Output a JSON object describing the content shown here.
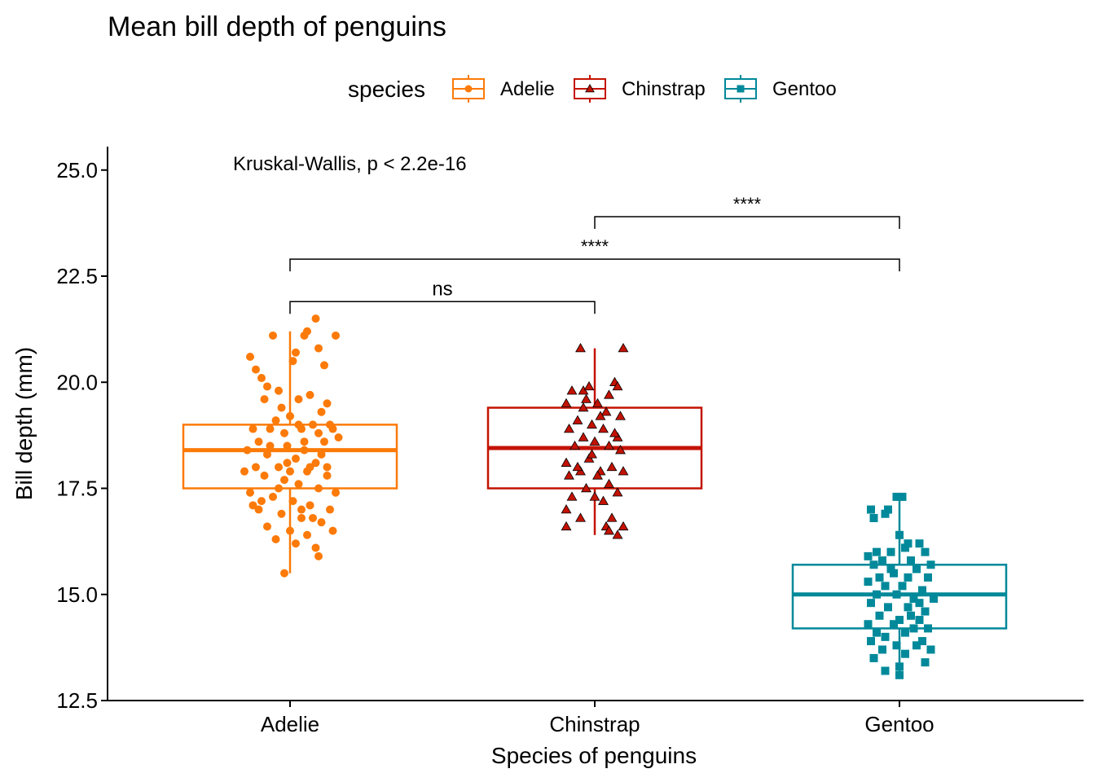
{
  "chart_data": {
    "type": "box",
    "title": "Mean bill depth of penguins",
    "xlabel": "Species of penguins",
    "ylabel": "Bill depth (mm)",
    "ylim": [
      12.5,
      25.5
    ],
    "yticks": [
      "12.5",
      "15.0",
      "17.5",
      "20.0",
      "22.5",
      "25.0"
    ],
    "ytick_values": [
      12.5,
      15.0,
      17.5,
      20.0,
      22.5,
      25.0
    ],
    "categories": [
      "Adelie",
      "Chinstrap",
      "Gentoo"
    ],
    "legend": {
      "title": "species",
      "position": "top",
      "items": [
        {
          "label": "Adelie",
          "color": "#FC7A08",
          "shape": "circle"
        },
        {
          "label": "Chinstrap",
          "color": "#C31200",
          "shape": "triangle"
        },
        {
          "label": "Gentoo",
          "color": "#00899A",
          "shape": "square"
        }
      ]
    },
    "annotation": "Kruskal-Wallis, p < 2.2e-16",
    "series": [
      {
        "name": "Adelie",
        "color": "#FC7A08",
        "shape": "circle",
        "box": {
          "min": 15.5,
          "q1": 17.5,
          "median": 18.4,
          "q3": 19.0,
          "max": 21.2
        },
        "points": [
          [
            -0.28,
            20.6
          ],
          [
            -0.24,
            20.3
          ],
          [
            -0.2,
            20.1
          ],
          [
            -0.16,
            19.9
          ],
          [
            -0.08,
            19.8
          ],
          [
            0.06,
            19.6
          ],
          [
            0.14,
            19.7
          ],
          [
            0.26,
            19.5
          ],
          [
            0.22,
            19.3
          ],
          [
            -0.12,
            21.1
          ],
          [
            0.04,
            20.7
          ],
          [
            0.1,
            21.1
          ],
          [
            0.12,
            21.2
          ],
          [
            0.18,
            21.5
          ],
          [
            0.32,
            21.1
          ],
          [
            0.2,
            20.8
          ],
          [
            0.02,
            20.5
          ],
          [
            0.24,
            20.4
          ],
          [
            -0.18,
            19.6
          ],
          [
            -0.06,
            19.4
          ],
          [
            0.0,
            19.2
          ],
          [
            -0.1,
            19.1
          ],
          [
            0.16,
            19.0
          ],
          [
            0.28,
            19.0
          ],
          [
            -0.26,
            18.9
          ],
          [
            -0.14,
            18.9
          ],
          [
            -0.04,
            18.8
          ],
          [
            0.08,
            18.9
          ],
          [
            0.2,
            18.8
          ],
          [
            0.3,
            18.9
          ],
          [
            -0.22,
            18.6
          ],
          [
            -0.02,
            18.5
          ],
          [
            0.1,
            18.6
          ],
          [
            0.24,
            18.6
          ],
          [
            -0.3,
            18.4
          ],
          [
            -0.16,
            18.3
          ],
          [
            0.04,
            18.2
          ],
          [
            0.18,
            18.1
          ],
          [
            -0.24,
            18.0
          ],
          [
            -0.08,
            18.0
          ],
          [
            0.0,
            17.9
          ],
          [
            0.12,
            17.9
          ],
          [
            0.26,
            18.0
          ],
          [
            -0.18,
            17.8
          ],
          [
            -0.04,
            17.7
          ],
          [
            0.06,
            17.6
          ],
          [
            0.2,
            17.5
          ],
          [
            0.32,
            17.4
          ],
          [
            -0.28,
            17.4
          ],
          [
            -0.12,
            17.3
          ],
          [
            0.02,
            17.2
          ],
          [
            0.14,
            17.1
          ],
          [
            0.28,
            17.0
          ],
          [
            -0.22,
            17.0
          ],
          [
            -0.06,
            16.9
          ],
          [
            0.08,
            16.8
          ],
          [
            0.22,
            16.7
          ],
          [
            -0.16,
            16.6
          ],
          [
            0.0,
            16.5
          ],
          [
            0.12,
            16.4
          ],
          [
            0.3,
            16.5
          ],
          [
            -0.1,
            16.3
          ],
          [
            0.04,
            16.2
          ],
          [
            0.18,
            16.1
          ],
          [
            0.2,
            15.9
          ],
          [
            -0.04,
            15.5
          ],
          [
            0.08,
            17.0
          ],
          [
            -0.2,
            17.2
          ],
          [
            0.16,
            16.8
          ],
          [
            -0.26,
            17.1
          ],
          [
            0.1,
            18.4
          ],
          [
            -0.14,
            18.5
          ],
          [
            0.22,
            18.3
          ],
          [
            -0.02,
            18.1
          ],
          [
            0.26,
            17.8
          ],
          [
            -0.32,
            17.9
          ],
          [
            0.34,
            18.7
          ],
          [
            -0.08,
            17.5
          ],
          [
            0.06,
            19.0
          ],
          [
            0.14,
            18.0
          ]
        ]
      },
      {
        "name": "Chinstrap",
        "color": "#C31200",
        "shape": "triangle",
        "box": {
          "min": 16.4,
          "q1": 17.5,
          "median": 18.45,
          "q3": 19.4,
          "max": 20.8
        },
        "points": [
          [
            -0.1,
            20.8
          ],
          [
            0.2,
            20.8
          ],
          [
            0.14,
            20.0
          ],
          [
            0.16,
            19.9
          ],
          [
            -0.08,
            19.8
          ],
          [
            -0.04,
            19.9
          ],
          [
            0.1,
            19.7
          ],
          [
            -0.16,
            19.8
          ],
          [
            -0.06,
            19.6
          ],
          [
            0.02,
            19.5
          ],
          [
            -0.2,
            19.5
          ],
          [
            0.08,
            19.3
          ],
          [
            0.18,
            19.2
          ],
          [
            -0.12,
            19.1
          ],
          [
            -0.02,
            19.0
          ],
          [
            0.06,
            18.9
          ],
          [
            -0.18,
            18.9
          ],
          [
            0.16,
            18.7
          ],
          [
            -0.08,
            18.7
          ],
          [
            0.0,
            18.6
          ],
          [
            -0.14,
            18.5
          ],
          [
            0.1,
            18.5
          ],
          [
            0.18,
            18.4
          ],
          [
            -0.04,
            18.2
          ],
          [
            -0.2,
            18.1
          ],
          [
            0.12,
            18.0
          ],
          [
            0.04,
            17.9
          ],
          [
            -0.1,
            17.9
          ],
          [
            0.2,
            17.9
          ],
          [
            -0.18,
            17.8
          ],
          [
            0.02,
            17.8
          ],
          [
            0.1,
            17.6
          ],
          [
            -0.06,
            17.5
          ],
          [
            0.16,
            17.4
          ],
          [
            -0.16,
            17.3
          ],
          [
            0.0,
            17.3
          ],
          [
            0.06,
            17.2
          ],
          [
            -0.2,
            17.0
          ],
          [
            -0.1,
            16.8
          ],
          [
            0.12,
            16.8
          ],
          [
            0.2,
            16.6
          ],
          [
            0.08,
            16.6
          ],
          [
            -0.2,
            16.6
          ],
          [
            0.1,
            16.5
          ],
          [
            0.16,
            16.4
          ],
          [
            -0.08,
            19.4
          ],
          [
            0.04,
            19.2
          ],
          [
            -0.02,
            18.3
          ],
          [
            0.14,
            18.8
          ],
          [
            -0.12,
            18.0
          ]
        ]
      },
      {
        "name": "Gentoo",
        "color": "#00899A",
        "shape": "square",
        "box": {
          "min": 13.1,
          "q1": 14.2,
          "median": 15.0,
          "q3": 15.7,
          "max": 17.3
        },
        "points": [
          [
            -0.02,
            17.3
          ],
          [
            0.02,
            17.3
          ],
          [
            -0.08,
            17.0
          ],
          [
            -0.2,
            17.0
          ],
          [
            -0.18,
            16.8
          ],
          [
            -0.1,
            16.9
          ],
          [
            0.0,
            16.4
          ],
          [
            0.06,
            16.2
          ],
          [
            0.14,
            16.2
          ],
          [
            -0.16,
            16.0
          ],
          [
            -0.06,
            16.0
          ],
          [
            0.04,
            16.1
          ],
          [
            0.18,
            16.0
          ],
          [
            -0.22,
            15.9
          ],
          [
            -0.12,
            15.8
          ],
          [
            0.08,
            15.8
          ],
          [
            0.22,
            15.7
          ],
          [
            -0.18,
            15.7
          ],
          [
            0.12,
            15.6
          ],
          [
            -0.04,
            15.5
          ],
          [
            0.2,
            15.4
          ],
          [
            -0.22,
            15.3
          ],
          [
            -0.1,
            15.2
          ],
          [
            0.02,
            15.2
          ],
          [
            0.16,
            15.1
          ],
          [
            -0.16,
            15.0
          ],
          [
            -0.02,
            15.0
          ],
          [
            0.1,
            14.9
          ],
          [
            0.24,
            14.9
          ],
          [
            -0.2,
            14.8
          ],
          [
            -0.08,
            14.7
          ],
          [
            0.06,
            14.7
          ],
          [
            0.18,
            14.6
          ],
          [
            -0.14,
            14.5
          ],
          [
            0.0,
            14.4
          ],
          [
            0.14,
            14.4
          ],
          [
            -0.22,
            14.3
          ],
          [
            -0.04,
            14.3
          ],
          [
            0.1,
            14.2
          ],
          [
            0.2,
            14.2
          ],
          [
            -0.16,
            14.1
          ],
          [
            0.04,
            14.1
          ],
          [
            -0.1,
            14.0
          ],
          [
            0.16,
            13.9
          ],
          [
            -0.2,
            13.9
          ],
          [
            -0.02,
            13.8
          ],
          [
            0.12,
            13.8
          ],
          [
            0.22,
            13.7
          ],
          [
            -0.12,
            13.7
          ],
          [
            0.04,
            13.6
          ],
          [
            -0.18,
            13.5
          ],
          [
            0.18,
            13.4
          ],
          [
            0.0,
            13.3
          ],
          [
            -0.1,
            13.2
          ],
          [
            0.0,
            13.1
          ],
          [
            0.06,
            15.4
          ],
          [
            -0.06,
            15.6
          ],
          [
            0.14,
            14.8
          ],
          [
            -0.14,
            15.4
          ],
          [
            0.08,
            14.5
          ]
        ]
      }
    ],
    "comparisons": [
      {
        "group1": "Adelie",
        "group2": "Chinstrap",
        "label": "ns",
        "y": 21.9
      },
      {
        "group1": "Adelie",
        "group2": "Gentoo",
        "label": "****",
        "y": 22.9
      },
      {
        "group1": "Chinstrap",
        "group2": "Gentoo",
        "label": "****",
        "y": 23.9
      }
    ]
  }
}
